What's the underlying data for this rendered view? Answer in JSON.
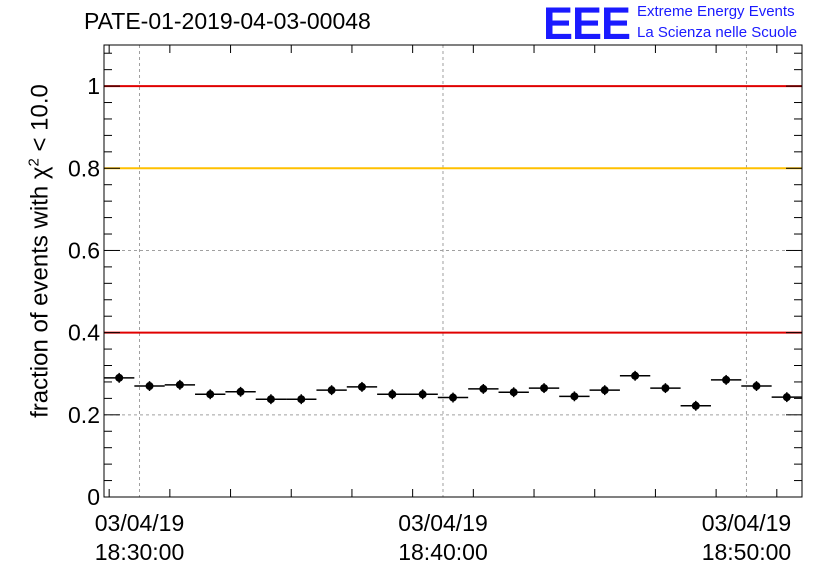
{
  "header": {
    "title": "PATE-01-2019-04-03-00048",
    "logo_letters": "EEE",
    "logo_line1": "Extreme Energy Events",
    "logo_line2": "La Scienza nelle Scuole",
    "logo_color": "#1a1aff"
  },
  "chart_data": {
    "type": "scatter",
    "title": "PATE-01-2019-04-03-00048",
    "ylabel": {
      "prefix": "fraction of events with ",
      "chi": "χ",
      "sup": "2",
      "suffix": " < 10.0"
    },
    "xlim": [
      28.83,
      51.83
    ],
    "ylim": [
      0,
      1.1
    ],
    "grid": true,
    "x_unit": "minutes after 03/04/19 18:00:00",
    "x_ticks": [
      {
        "x": 30,
        "date": "03/04/19",
        "time": "18:30:00"
      },
      {
        "x": 40,
        "date": "03/04/19",
        "time": "18:40:00"
      },
      {
        "x": 50,
        "date": "03/04/19",
        "time": "18:50:00"
      }
    ],
    "y_ticks": [
      {
        "y": 0,
        "label": "0"
      },
      {
        "y": 0.2,
        "label": "0.2"
      },
      {
        "y": 0.4,
        "label": "0.4"
      },
      {
        "y": 0.6,
        "label": "0.6"
      },
      {
        "y": 0.8,
        "label": "0.8"
      },
      {
        "y": 1.0,
        "label": "1"
      }
    ],
    "reference_lines": [
      {
        "y": 1.0,
        "color": "#e00000"
      },
      {
        "y": 0.8,
        "color": "#ffc000"
      },
      {
        "y": 0.4,
        "color": "#e00000"
      }
    ],
    "x_half_width": 0.5,
    "y_error": 0.012,
    "points": [
      {
        "x": 29.33,
        "y": 0.29
      },
      {
        "x": 30.33,
        "y": 0.27
      },
      {
        "x": 31.33,
        "y": 0.273
      },
      {
        "x": 32.33,
        "y": 0.25
      },
      {
        "x": 33.33,
        "y": 0.256
      },
      {
        "x": 34.33,
        "y": 0.238
      },
      {
        "x": 35.33,
        "y": 0.238
      },
      {
        "x": 36.33,
        "y": 0.26
      },
      {
        "x": 37.33,
        "y": 0.268
      },
      {
        "x": 38.33,
        "y": 0.25
      },
      {
        "x": 39.33,
        "y": 0.25
      },
      {
        "x": 40.33,
        "y": 0.242
      },
      {
        "x": 41.33,
        "y": 0.263
      },
      {
        "x": 42.33,
        "y": 0.255
      },
      {
        "x": 43.33,
        "y": 0.265
      },
      {
        "x": 44.33,
        "y": 0.245
      },
      {
        "x": 45.33,
        "y": 0.26
      },
      {
        "x": 46.33,
        "y": 0.295
      },
      {
        "x": 47.33,
        "y": 0.265
      },
      {
        "x": 48.33,
        "y": 0.222
      },
      {
        "x": 49.33,
        "y": 0.285
      },
      {
        "x": 50.33,
        "y": 0.27
      },
      {
        "x": 51.33,
        "y": 0.243
      }
    ]
  }
}
